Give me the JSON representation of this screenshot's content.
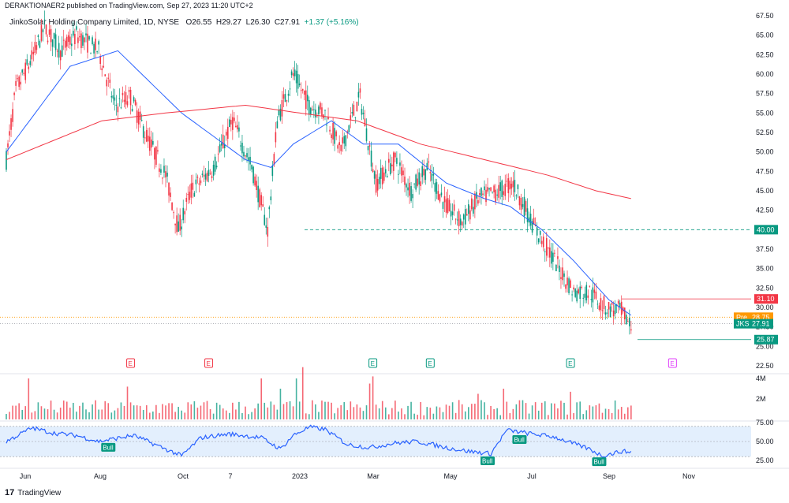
{
  "header": {
    "published": "DERAKTIONAER2 published on TradingView.com, Sep 27, 2023 11:20 UTC+2",
    "symbol": "JinkoSolar Holding Company Limited, 1D, NYSE",
    "open_label": "O",
    "open": "26.55",
    "high_label": "H",
    "high": "29.27",
    "low_label": "L",
    "low": "26.30",
    "close_label": "C",
    "close": "27.91",
    "change": "+1.37 (+5.16%)"
  },
  "brand": {
    "text": "TradingView",
    "logo": "17"
  },
  "colors": {
    "up": "#089981",
    "down": "#f23645",
    "sma_fast": "#2962ff",
    "sma_slow": "#f23645",
    "rsi": "#2962ff",
    "band": "#e3effd",
    "support": "#089981"
  },
  "chart_data": [
    {
      "type": "candlestick",
      "x_tick_labels": [
        "Jun",
        "Aug",
        "Oct",
        "7",
        "2023",
        "Mar",
        "May",
        "Jul",
        "Sep",
        "Nov"
      ],
      "y_tick_labels": [
        "67.50",
        "65.00",
        "62.50",
        "60.00",
        "57.50",
        "55.00",
        "52.50",
        "50.00",
        "47.50",
        "45.00",
        "42.50",
        "40.00",
        "37.50",
        "35.00",
        "32.50",
        "30.00",
        "27.50",
        "25.00",
        "22.50"
      ],
      "ylim": [
        22.5,
        67.5
      ],
      "waypoints": [
        [
          0,
          49
        ],
        [
          6,
          58
        ],
        [
          16,
          62
        ],
        [
          24,
          66
        ],
        [
          34,
          63
        ],
        [
          44,
          65
        ],
        [
          58,
          63
        ],
        [
          68,
          56
        ],
        [
          78,
          57
        ],
        [
          88,
          52
        ],
        [
          100,
          47
        ],
        [
          108,
          40
        ],
        [
          116,
          45
        ],
        [
          130,
          48
        ],
        [
          142,
          54
        ],
        [
          154,
          48
        ],
        [
          164,
          40
        ],
        [
          170,
          54
        ],
        [
          180,
          60
        ],
        [
          190,
          56
        ],
        [
          200,
          55
        ],
        [
          210,
          50
        ],
        [
          216,
          54
        ],
        [
          222,
          57
        ],
        [
          232,
          46
        ],
        [
          244,
          49
        ],
        [
          254,
          45
        ],
        [
          264,
          48
        ],
        [
          276,
          43
        ],
        [
          286,
          41
        ],
        [
          296,
          44
        ],
        [
          310,
          45
        ],
        [
          318,
          46
        ],
        [
          332,
          40
        ],
        [
          344,
          36
        ],
        [
          356,
          32
        ],
        [
          366,
          32
        ],
        [
          376,
          30
        ],
        [
          386,
          29.5
        ],
        [
          392,
          27.5
        ]
      ],
      "sma_fast": [
        [
          0,
          50
        ],
        [
          40,
          61
        ],
        [
          70,
          63
        ],
        [
          110,
          55
        ],
        [
          150,
          49
        ],
        [
          166,
          48
        ],
        [
          180,
          51
        ],
        [
          204,
          54
        ],
        [
          224,
          51
        ],
        [
          246,
          51
        ],
        [
          276,
          46
        ],
        [
          300,
          44
        ],
        [
          316,
          43
        ],
        [
          336,
          40
        ],
        [
          356,
          36
        ],
        [
          378,
          31
        ],
        [
          392,
          29
        ]
      ],
      "sma_slow": [
        [
          0,
          49
        ],
        [
          60,
          54
        ],
        [
          100,
          55
        ],
        [
          150,
          56
        ],
        [
          184,
          55
        ],
        [
          220,
          54
        ],
        [
          260,
          51
        ],
        [
          300,
          49
        ],
        [
          340,
          47
        ],
        [
          370,
          45
        ],
        [
          392,
          44
        ]
      ],
      "levels": [
        {
          "name": "support",
          "value": 40.0,
          "label": "40.00",
          "color": "#089981",
          "style": "dashed"
        },
        {
          "name": "resistance",
          "value": 31.1,
          "label": "31.10",
          "color": "#f23645"
        },
        {
          "name": "premarket",
          "value": 28.75,
          "label": "28.75",
          "prefix": "Pre",
          "color": "#ff9800",
          "style": "dotted"
        },
        {
          "name": "last",
          "value": 27.91,
          "label": "27.91",
          "prefix": "JKS",
          "color": "#089981"
        },
        {
          "name": "low",
          "value": 25.87,
          "label": "25.87",
          "color": "#089981"
        }
      ],
      "earnings": [
        {
          "label": "E",
          "at": 78,
          "color": "#f23645"
        },
        {
          "label": "E",
          "at": 127,
          "color": "#f23645"
        },
        {
          "label": "E",
          "at": 230,
          "color": "#089981"
        },
        {
          "label": "E",
          "at": 266,
          "color": "#089981"
        },
        {
          "label": "E",
          "at": 354,
          "color": "#089981"
        },
        {
          "label": "E",
          "at": 418,
          "color": "#e040fb"
        }
      ]
    },
    {
      "type": "bar",
      "name": "volume",
      "y_tick_labels": [
        "4M",
        "2M"
      ],
      "ylim": [
        0,
        4
      ],
      "spikes": [
        [
          14,
          4
        ],
        [
          76,
          3.2
        ],
        [
          160,
          4
        ],
        [
          172,
          3
        ],
        [
          182,
          4
        ],
        [
          186,
          5.1
        ],
        [
          228,
          3.5
        ],
        [
          230,
          4.2
        ],
        [
          275,
          2.8
        ],
        [
          296,
          2.5
        ],
        [
          312,
          3
        ],
        [
          354,
          2.7
        ],
        [
          394,
          3.1
        ]
      ]
    },
    {
      "type": "line",
      "name": "RSI",
      "y_tick_labels": [
        "75.00",
        "50.00",
        "25.00"
      ],
      "ylim": [
        20,
        80
      ],
      "band": [
        30,
        70
      ],
      "waypoints": [
        [
          0,
          50
        ],
        [
          16,
          68
        ],
        [
          30,
          61
        ],
        [
          44,
          58
        ],
        [
          58,
          50
        ],
        [
          66,
          53
        ],
        [
          80,
          58
        ],
        [
          100,
          40
        ],
        [
          110,
          31
        ],
        [
          122,
          55
        ],
        [
          140,
          60
        ],
        [
          160,
          55
        ],
        [
          172,
          40
        ],
        [
          180,
          58
        ],
        [
          190,
          69
        ],
        [
          200,
          66
        ],
        [
          214,
          46
        ],
        [
          228,
          42
        ],
        [
          244,
          48
        ],
        [
          258,
          50
        ],
        [
          276,
          42
        ],
        [
          290,
          37
        ],
        [
          304,
          34
        ],
        [
          314,
          65
        ],
        [
          330,
          60
        ],
        [
          344,
          56
        ],
        [
          356,
          47
        ],
        [
          366,
          40
        ],
        [
          374,
          31
        ],
        [
          386,
          37
        ],
        [
          392,
          36
        ]
      ],
      "divergence_labels": [
        {
          "label": "Bull",
          "at": 64
        },
        {
          "label": "Bull",
          "at": 302
        },
        {
          "label": "Bull",
          "at": 322
        },
        {
          "label": "Bull",
          "at": 372
        }
      ]
    }
  ]
}
